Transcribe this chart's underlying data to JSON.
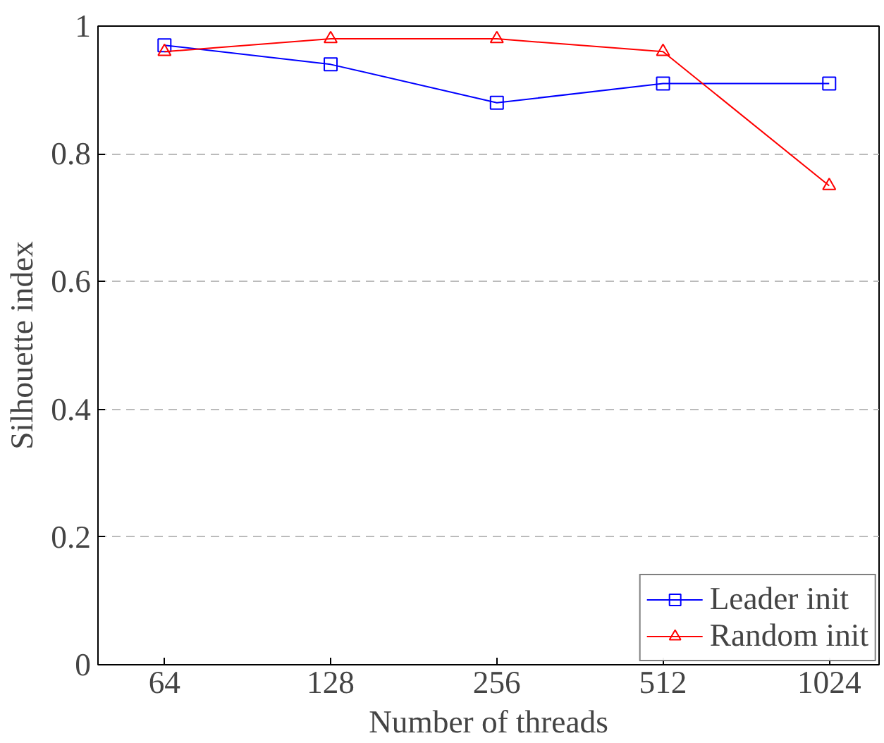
{
  "chart_data": {
    "type": "line",
    "xlabel": "Number of threads",
    "ylabel": "Silhouette index",
    "categories": [
      "64",
      "128",
      "256",
      "512",
      "1024"
    ],
    "series": [
      {
        "name": "Leader init",
        "color": "#0000ff",
        "marker": "square",
        "values": [
          0.97,
          0.94,
          0.88,
          0.91,
          0.91
        ]
      },
      {
        "name": "Random init",
        "color": "#ff0000",
        "marker": "triangle",
        "values": [
          0.96,
          0.98,
          0.98,
          0.96,
          0.75
        ]
      }
    ],
    "ylim": [
      0,
      1
    ],
    "yticks": [
      0,
      0.2,
      0.4,
      0.6,
      0.8,
      1
    ],
    "grid": "y",
    "legend": "bottom right",
    "line_style": "solid"
  }
}
